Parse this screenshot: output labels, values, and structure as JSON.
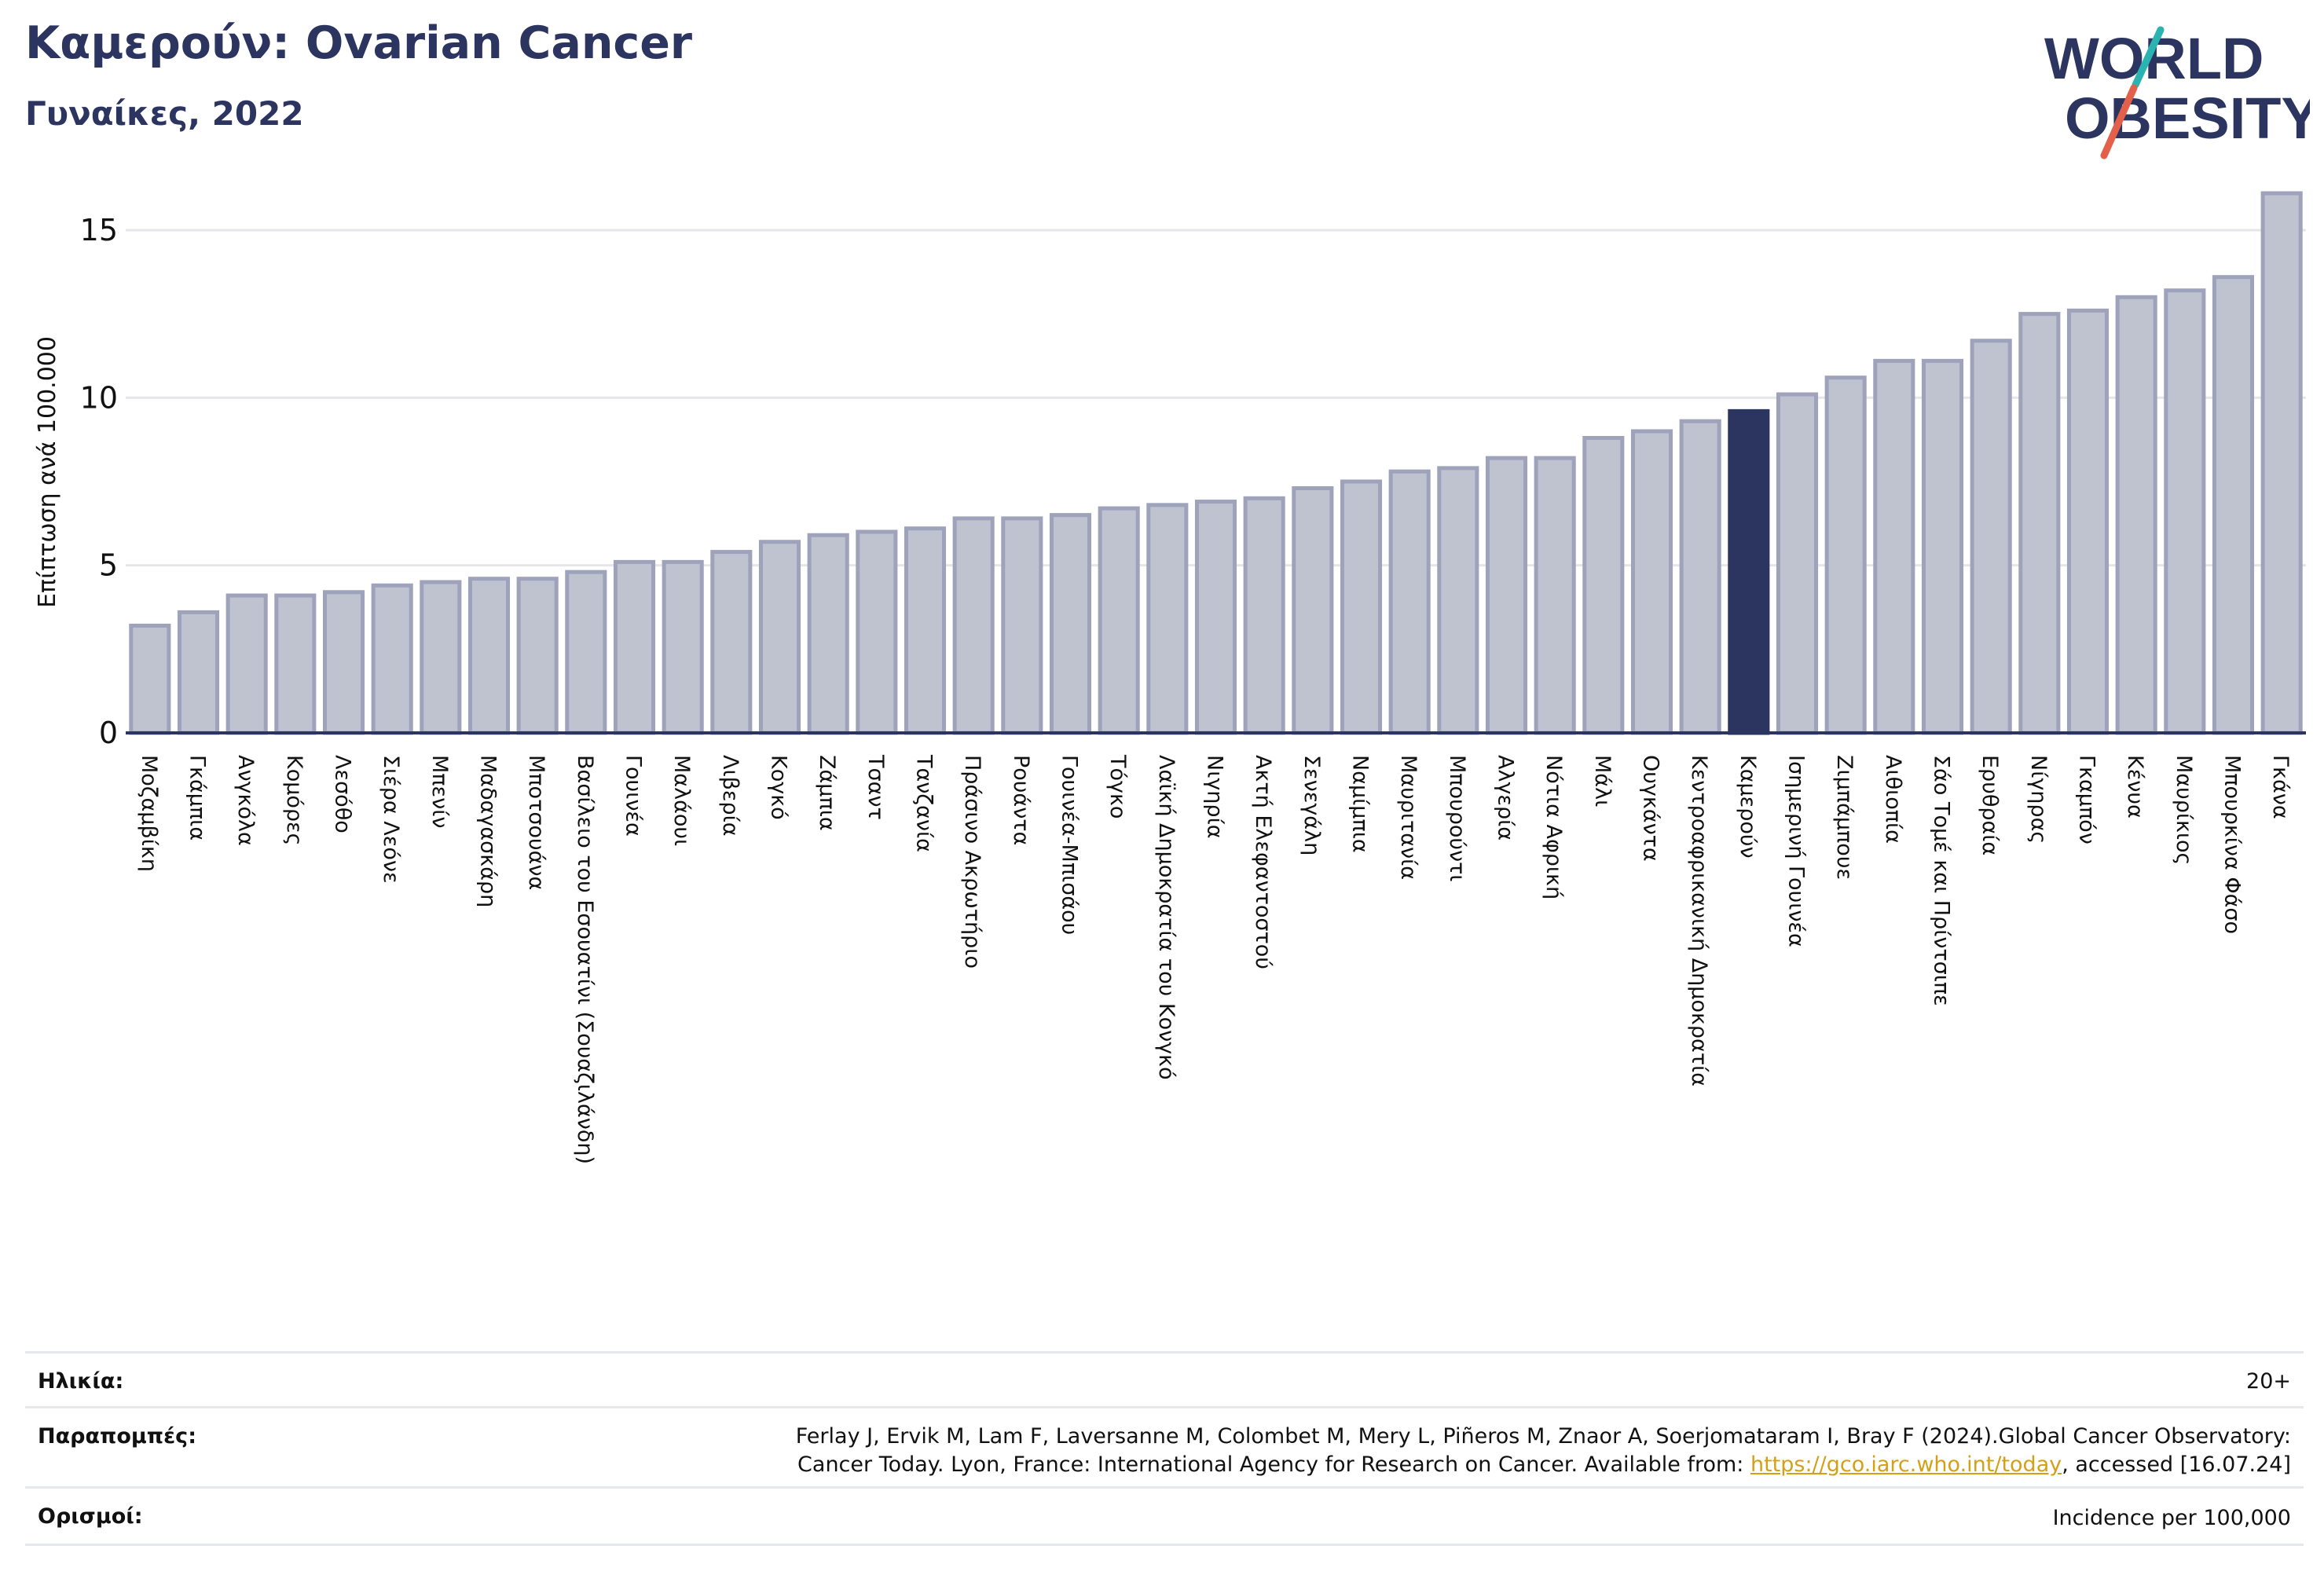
{
  "header": {
    "title": "Καμερούν: Ovarian Cancer",
    "subtitle": "Γυναίκες, 2022"
  },
  "logo": {
    "line1": "WORLD",
    "line2": "OBESITY",
    "colors": {
      "text": "#2b3560",
      "slash_teal": "#2bb3b1",
      "slash_red": "#e5604a"
    }
  },
  "chart_data": {
    "type": "bar",
    "ylabel": "Επίπτωση ανά 100.000",
    "ylim": [
      0,
      16.5
    ],
    "yticks": [
      0,
      5,
      10,
      15
    ],
    "grid": true,
    "highlight": "Καμερούν",
    "colors": {
      "bar_fill": "#bfc2cf",
      "bar_edge": "#9ea2ba",
      "highlight": "#2b3560",
      "grid": "#e6e6ea"
    },
    "categories": [
      "Μοζαμβίκη",
      "Γκάμπια",
      "Ανγκόλα",
      "Κομόρες",
      "Λεσόθο",
      "Σιέρα Λεόνε",
      "Μπενίν",
      "Μαδαγασκάρη",
      "Μποτσουάνα",
      "Βασίλειο του Εσουατίνι (Σουαζιλάνδη)",
      "Γουινέα",
      "Μαλάουι",
      "Λιβερία",
      "Κογκό",
      "Ζάμπια",
      "Τσαντ",
      "Τανζανία",
      "Πράσινο Ακρωτήριο",
      "Ρουάντα",
      "Γουινέα-Μπισάου",
      "Τόγκο",
      "Λαϊκή Δημοκρατία του Κονγκό",
      "Νιγηρία",
      "Ακτή Ελεφαντοστού",
      "Σενεγάλη",
      "Ναμίμπια",
      "Μαυριτανία",
      "Μπουρούντι",
      "Αλγερία",
      "Νότια Αφρική",
      "Μάλι",
      "Ουγκάντα",
      "Κεντροαφρικανική Δημοκρατία",
      "Καμερούν",
      "Ισημερινή Γουινέα",
      "Ζιμπάμπουε",
      "Αιθιοπία",
      "Σάο Τομέ και Πρίντσιπε",
      "Ερυθραία",
      "Νίγηρας",
      "Γκαμπόν",
      "Κένυα",
      "Μαυρίκιος",
      "Μπουρκίνα Φάσο",
      "Γκάνα"
    ],
    "values": [
      3.2,
      3.6,
      4.1,
      4.1,
      4.2,
      4.4,
      4.5,
      4.6,
      4.6,
      4.8,
      5.1,
      5.1,
      5.4,
      5.7,
      5.9,
      6.0,
      6.1,
      6.4,
      6.4,
      6.5,
      6.7,
      6.8,
      6.9,
      7.0,
      7.3,
      7.5,
      7.8,
      7.9,
      8.2,
      8.2,
      8.8,
      9.0,
      9.3,
      9.6,
      10.1,
      10.6,
      11.1,
      11.1,
      11.7,
      12.5,
      12.6,
      13.0,
      13.2,
      13.6,
      16.1
    ]
  },
  "footer": {
    "age_label": "Ηλικία:",
    "age_value": "20+",
    "ref_label": "Παραπομπές:",
    "ref_line1": "Ferlay J, Ervik M, Lam F, Laversanne M, Colombet M, Mery L, Piñeros M, Znaor A, Soerjomataram I, Bray F (2024).Global Cancer Observatory:",
    "ref_line2_pre": "Cancer Today. Lyon, France: International Agency for Research on Cancer. Available from: ",
    "ref_link": "https://gco.iarc.who.int/today",
    "ref_line2_post": ", accessed [16.07.24]",
    "def_label": "Ορισμοί:",
    "def_value": "Incidence per 100,000"
  }
}
